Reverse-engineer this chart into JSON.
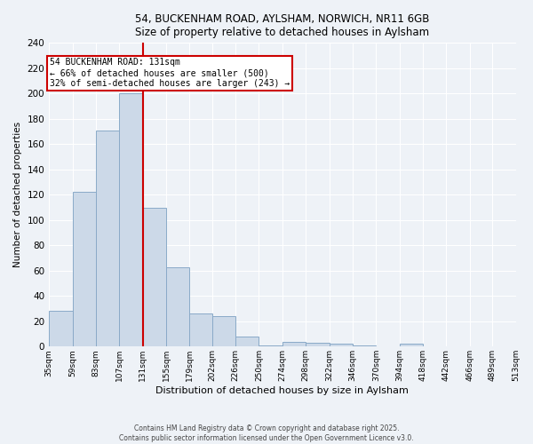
{
  "title_line1": "54, BUCKENHAM ROAD, AYLSHAM, NORWICH, NR11 6GB",
  "title_line2": "Size of property relative to detached houses in Aylsham",
  "xlabel": "Distribution of detached houses by size in Aylsham",
  "ylabel": "Number of detached properties",
  "bar_values": [
    28,
    122,
    171,
    200,
    110,
    63,
    26,
    24,
    8,
    1,
    4,
    3,
    2,
    1,
    0,
    2,
    0,
    0,
    0,
    0
  ],
  "bin_edges": [
    35,
    59,
    83,
    107,
    131,
    155,
    179,
    202,
    226,
    250,
    274,
    298,
    322,
    346,
    370,
    394,
    418,
    442,
    466,
    489,
    513
  ],
  "tick_labels": [
    "35sqm",
    "59sqm",
    "83sqm",
    "107sqm",
    "131sqm",
    "155sqm",
    "179sqm",
    "202sqm",
    "226sqm",
    "250sqm",
    "274sqm",
    "298sqm",
    "322sqm",
    "346sqm",
    "370sqm",
    "394sqm",
    "418sqm",
    "442sqm",
    "466sqm",
    "489sqm",
    "513sqm"
  ],
  "bar_color": "#ccd9e8",
  "bar_edge_color": "#8aaac8",
  "reference_line_x": 131,
  "annotation_title": "54 BUCKENHAM ROAD: 131sqm",
  "annotation_line1": "← 66% of detached houses are smaller (500)",
  "annotation_line2": "32% of semi-detached houses are larger (243) →",
  "annotation_box_facecolor": "#ffffff",
  "annotation_box_edgecolor": "#cc0000",
  "ref_line_color": "#cc0000",
  "background_color": "#eef2f7",
  "grid_color": "#ffffff",
  "ylim": [
    0,
    240
  ],
  "yticks": [
    0,
    20,
    40,
    60,
    80,
    100,
    120,
    140,
    160,
    180,
    200,
    220,
    240
  ],
  "footnote": "Contains HM Land Registry data © Crown copyright and database right 2025.\nContains public sector information licensed under the Open Government Licence v3.0."
}
